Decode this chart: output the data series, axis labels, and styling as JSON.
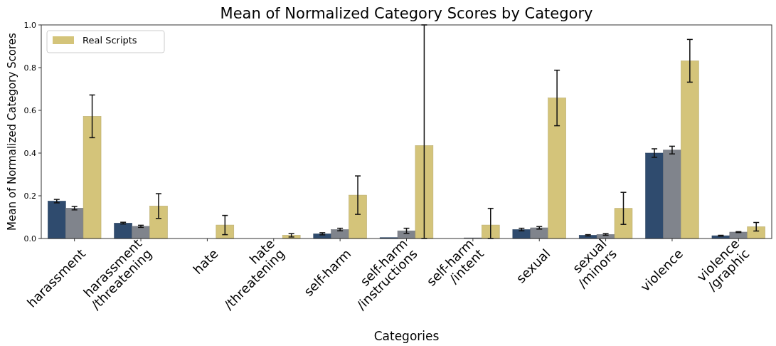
{
  "chart_data": {
    "type": "bar",
    "title": "Mean of Normalized Category Scores by Category",
    "xlabel": "Categories",
    "ylabel": "Mean of Normalized Category Scores",
    "categories": [
      "harassment",
      "harassment\n/threatening",
      "hate",
      "hate\n/threatening",
      "self-harm",
      "self-harm\n/instructions",
      "self-harm\n/intent",
      "sexual",
      "sexual\n/minors",
      "violence",
      "violence\n/graphic"
    ],
    "series": [
      {
        "color": "#2f4b6e",
        "values": [
          0.175,
          0.072,
          null,
          null,
          0.022,
          0.004,
          null,
          0.042,
          0.015,
          0.4,
          0.013
        ],
        "errors": [
          0.008,
          0.004,
          null,
          null,
          0.005,
          null,
          null,
          0.006,
          0.003,
          0.02,
          0.002
        ]
      },
      {
        "color": "#80848c",
        "values": [
          0.142,
          0.057,
          null,
          null,
          0.042,
          0.036,
          0.003,
          0.05,
          0.019,
          0.414,
          0.03
        ],
        "errors": [
          0.008,
          0.005,
          null,
          null,
          0.006,
          0.012,
          null,
          0.006,
          0.004,
          0.018,
          0.002
        ]
      },
      {
        "name": "Real Scripts",
        "color": "#d4c47a",
        "values": [
          0.572,
          0.152,
          0.063,
          0.015,
          0.203,
          0.435,
          0.063,
          0.658,
          0.141,
          0.832,
          0.055
        ],
        "errors": [
          0.1,
          0.058,
          0.045,
          0.008,
          0.09,
          [
            0,
            1
          ],
          [
            0,
            0.141
          ],
          0.13,
          0.075,
          0.1,
          0.02
        ]
      }
    ],
    "ylim": [
      0,
      1
    ],
    "yticks": [
      {
        "value": 0,
        "label": "0.0"
      },
      {
        "value": 0.2,
        "label": "0.2"
      },
      {
        "value": 0.4,
        "label": "0.4"
      },
      {
        "value": 0.6,
        "label": "0.6"
      },
      {
        "value": 0.8,
        "label": "0.8"
      },
      {
        "value": 1,
        "label": "1.0"
      }
    ],
    "legend": "top left"
  }
}
